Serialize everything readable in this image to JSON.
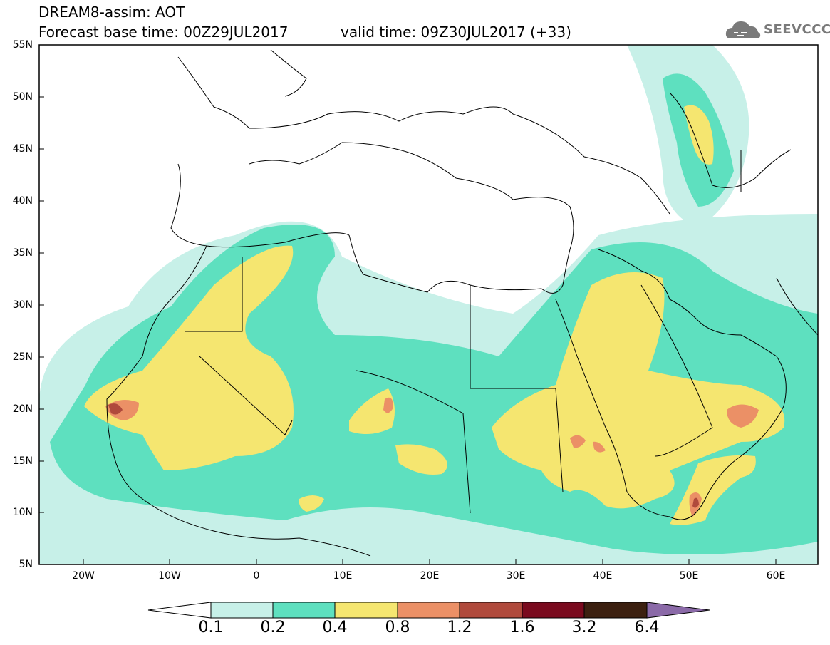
{
  "header": {
    "line1": "DREAM8-assim: AOT",
    "line2": "Forecast base time: 00Z29JUL2017",
    "valid": "valid time: 09Z30JUL2017 (+33)",
    "logo_text": "SEEVCCC"
  },
  "map": {
    "variable": "AOT",
    "lat_labels": [
      "55N",
      "50N",
      "45N",
      "40N",
      "35N",
      "30N",
      "25N",
      "20N",
      "15N",
      "10N",
      "5N"
    ],
    "lon_labels": [
      "20W",
      "10W",
      "0",
      "10E",
      "20E",
      "30E",
      "40E",
      "50E",
      "60E"
    ]
  },
  "colorbar": {
    "labels": [
      "0.1",
      "0.2",
      "0.4",
      "0.8",
      "1.2",
      "1.6",
      "3.2",
      "6.4"
    ],
    "colors": [
      "#ffffff",
      "#c7f0e8",
      "#5ee0bf",
      "#f5e670",
      "#eb9066",
      "#b04a3c",
      "#7a0a1e",
      "#3c2010",
      "#8b6aa8"
    ]
  }
}
